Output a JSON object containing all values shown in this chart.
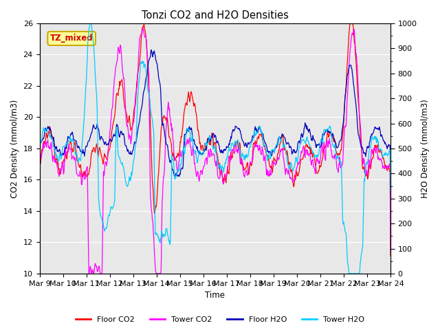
{
  "title": "Tonzi CO2 and H2O Densities",
  "xlabel": "Time",
  "ylabel_left": "CO2 Density (mmol/m3)",
  "ylabel_right": "H2O Density (mmol/m3)",
  "annotation": "TZ_mixed",
  "xlim": [
    0,
    360
  ],
  "ylim_left": [
    10,
    26
  ],
  "ylim_right": [
    0,
    1000
  ],
  "xtick_labels": [
    "Mar 9",
    "Mar 10",
    "Mar 11",
    "Mar 12",
    "Mar 13",
    "Mar 14",
    "Mar 15",
    "Mar 16",
    "Mar 17",
    "Mar 18",
    "Mar 19",
    "Mar 20",
    "Mar 21",
    "Mar 22",
    "Mar 23",
    "Mar 24"
  ],
  "n_points": 720,
  "legend_labels": [
    "Floor CO2",
    "Tower CO2",
    "Floor H2O",
    "Tower H2O"
  ],
  "legend_colors": [
    "#ff0000",
    "#ff00ff",
    "#0000bb",
    "#00ccff"
  ],
  "colors": {
    "floor_co2": "#ff0000",
    "tower_co2": "#ff00ff",
    "floor_h2o": "#0000bb",
    "tower_h2o": "#00ccff"
  },
  "plot_bg_color": "#e8e8e8",
  "annotation_bg": "#ffff99",
  "annotation_border": "#ccaa00"
}
